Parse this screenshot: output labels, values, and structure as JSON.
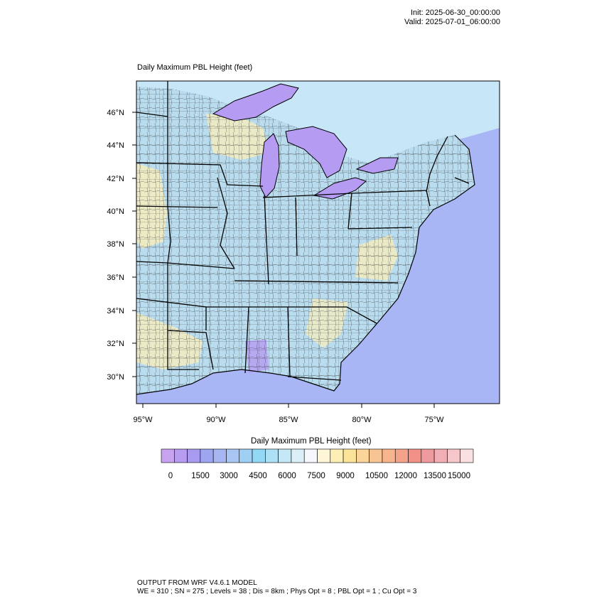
{
  "header": {
    "init": "Init: 2025-06-30_00:00:00",
    "valid": "Valid: 2025-07-01_06:00:00"
  },
  "map": {
    "title": "Daily Maximum PBL Height   (feet)",
    "lat_labels": [
      "46°N",
      "44°N",
      "42°N",
      "40°N",
      "38°N",
      "36°N",
      "34°N",
      "32°N",
      "30°N"
    ],
    "lon_labels": [
      "95°W",
      "90°W",
      "85°W",
      "80°W",
      "75°W"
    ],
    "colors": {
      "land_base": "#b9dcef",
      "ocean": "#a9b6f6",
      "lakes": "#b59cf2",
      "warm_patch": "#f6edbd",
      "boundary": "#000000"
    }
  },
  "colorbar": {
    "title": "Daily Maximum PBL Height  (feet)",
    "labels": [
      "0",
      "1500",
      "3000",
      "4500",
      "6000",
      "7500",
      "9000",
      "10500",
      "12000",
      "13500",
      "15000"
    ],
    "colors": [
      "#c8a4f0",
      "#b79cf0",
      "#a89af0",
      "#9ea6f2",
      "#a7b6f3",
      "#a9c6f3",
      "#9fd0f3",
      "#93d8f4",
      "#aee0f5",
      "#c6e8f6",
      "#dbeff8",
      "#f4f7fb",
      "#fff6d7",
      "#fdeeb4",
      "#fbe39a",
      "#fbd49a",
      "#f9c493",
      "#f7b48d",
      "#f5a28a",
      "#f29188",
      "#ef9a9c",
      "#f1aeb4",
      "#f5c6ca",
      "#fbe0e2"
    ]
  },
  "footer": {
    "line1": "OUTPUT FROM WRF V4.6.1 MODEL",
    "line2": "WE = 310 ; SN = 275 ; Levels = 38 ; Dis = 8km ; Phys Opt = 8 ; PBL Opt = 1 ; Cu Opt = 3"
  }
}
